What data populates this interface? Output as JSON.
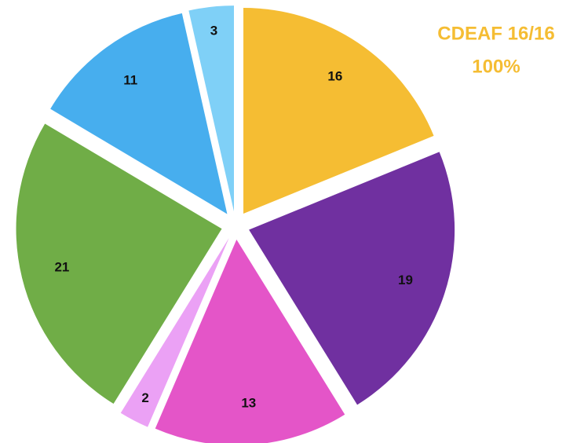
{
  "chart_data": {
    "type": "pie",
    "categories": [
      null,
      null,
      null,
      null,
      null,
      null,
      null
    ],
    "values": [
      16,
      19,
      13,
      2,
      21,
      11,
      3
    ],
    "colors": [
      "#f5bd33",
      "#7030a0",
      "#e455c8",
      "#eba1f5",
      "#70ad47",
      "#47aeee",
      "#7fd0f7"
    ],
    "annotations": [
      "CDEAF 16/16",
      "100%"
    ],
    "annotation_color": "#f5bd33"
  }
}
